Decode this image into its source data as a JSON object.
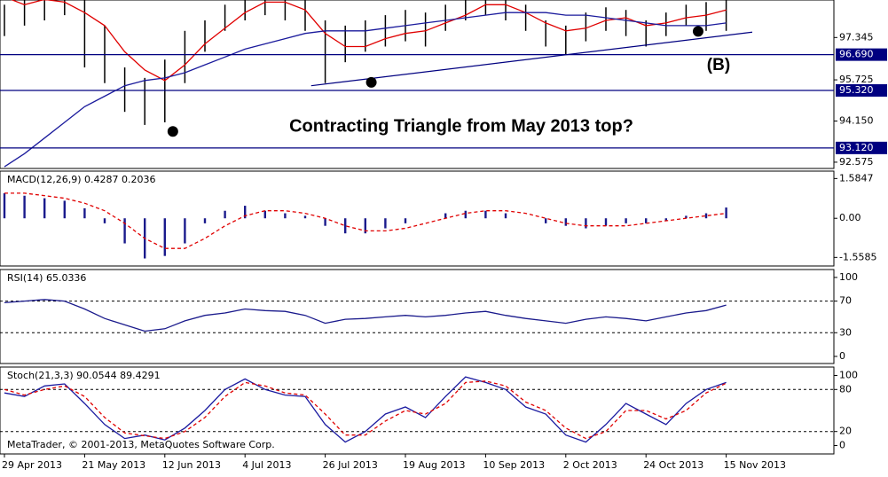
{
  "chart_data": [
    {
      "type": "hlc",
      "color": "#000000",
      "high": [
        98.6,
        99.0,
        99.0,
        99.0,
        98.8,
        97.8,
        96.2,
        95.8,
        96.5,
        97.6,
        98.0,
        98.6,
        99.0,
        99.0,
        99.0,
        98.8,
        98.0,
        97.8,
        98.0,
        98.2,
        98.4,
        98.3,
        98.6,
        99.0,
        99.0,
        98.9,
        98.6,
        98.0,
        97.8,
        98.3,
        98.5,
        98.4,
        98.0,
        98.3,
        98.6,
        98.7,
        98.8
      ],
      "low": [
        97.4,
        97.8,
        98.0,
        98.2,
        96.2,
        95.6,
        94.5,
        94.0,
        94.1,
        95.6,
        96.8,
        97.6,
        98.0,
        98.2,
        98.0,
        97.6,
        95.6,
        96.4,
        96.8,
        97.0,
        97.2,
        97.0,
        97.6,
        98.0,
        98.2,
        98.0,
        97.6,
        97.0,
        96.7,
        97.2,
        97.6,
        97.4,
        97.0,
        97.4,
        97.8,
        97.6,
        97.6
      ],
      "series": [
        {
          "color": "#e00000",
          "values": [
            98.9,
            98.6,
            98.8,
            98.7,
            98.3,
            97.8,
            96.8,
            96.1,
            95.7,
            96.3,
            97.1,
            97.7,
            98.3,
            98.7,
            98.7,
            98.4,
            97.5,
            97.0,
            97.0,
            97.3,
            97.5,
            97.6,
            97.9,
            98.2,
            98.6,
            98.6,
            98.3,
            97.9,
            97.6,
            97.7,
            98.0,
            98.1,
            97.8,
            97.9,
            98.1,
            98.2,
            98.4
          ]
        },
        {
          "color": "#1a1a9c",
          "values": [
            92.4,
            92.9,
            93.5,
            94.1,
            94.7,
            95.1,
            95.5,
            95.7,
            95.8,
            96.0,
            96.3,
            96.6,
            96.9,
            97.1,
            97.3,
            97.5,
            97.6,
            97.6,
            97.6,
            97.7,
            97.8,
            97.9,
            98.0,
            98.1,
            98.2,
            98.3,
            98.3,
            98.3,
            98.2,
            98.2,
            98.1,
            98.0,
            97.9,
            97.8,
            97.8,
            97.8,
            97.9
          ]
        }
      ],
      "ylim": [
        92.335,
        98.78
      ],
      "yticks": [
        92.575,
        {
          "value": 94.15,
          "label": "94.150"
        },
        95.725,
        97.345
      ],
      "levels": [
        {
          "value": 96.69,
          "label": "96.690"
        },
        {
          "value": 95.32,
          "label": "95.320"
        },
        {
          "value": 93.12,
          "label": "93.120"
        }
      ],
      "level_color": "#000080",
      "trendline": {
        "x": [
          15.3,
          37.3
        ],
        "y": [
          95.5,
          97.55
        ]
      },
      "markers": {
        "x": [
          8.4,
          18.3,
          34.6
        ],
        "y": [
          93.75,
          95.63,
          97.58
        ]
      },
      "annotation": "Contracting Triangle from May 2013 top?",
      "wave_label": "(B)"
    },
    {
      "type": "macd",
      "title": "MACD(12,26,9) 0.4287 0.2036",
      "color": "#1a1a8c",
      "values": [
        1.0,
        0.9,
        0.8,
        0.7,
        0.4,
        -0.2,
        -1.0,
        -1.6,
        -1.5,
        -1.0,
        -0.2,
        0.3,
        0.5,
        0.3,
        0.2,
        0.1,
        -0.3,
        -0.6,
        -0.6,
        -0.4,
        -0.2,
        0.0,
        0.2,
        0.3,
        0.3,
        0.2,
        0.0,
        -0.2,
        -0.3,
        -0.4,
        -0.3,
        -0.2,
        -0.2,
        -0.1,
        0.1,
        0.2,
        0.43
      ],
      "series": [
        {
          "color": "#e00000",
          "dashed": true,
          "values": [
            1.0,
            1.0,
            0.9,
            0.8,
            0.6,
            0.3,
            -0.2,
            -0.8,
            -1.2,
            -1.2,
            -0.8,
            -0.3,
            0.1,
            0.3,
            0.3,
            0.2,
            0.0,
            -0.3,
            -0.5,
            -0.5,
            -0.4,
            -0.2,
            0.0,
            0.2,
            0.3,
            0.3,
            0.2,
            0.0,
            -0.2,
            -0.3,
            -0.3,
            -0.3,
            -0.2,
            -0.1,
            0.0,
            0.1,
            0.2
          ]
        }
      ],
      "ylim": [
        -1.9,
        1.88
      ],
      "yticks": [
        -1.5585,
        {
          "value": 0,
          "label": "0.00"
        },
        1.5847
      ]
    },
    {
      "type": "line",
      "title": "RSI(14) 65.0336",
      "series": [
        {
          "color": "#1a1a8c",
          "values": [
            68,
            70,
            72,
            70,
            60,
            48,
            40,
            32,
            35,
            45,
            52,
            55,
            60,
            58,
            57,
            52,
            42,
            47,
            48,
            50,
            52,
            50,
            52,
            55,
            57,
            52,
            48,
            45,
            42,
            47,
            50,
            48,
            45,
            50,
            55,
            58,
            65
          ]
        }
      ],
      "ylim": [
        -9,
        110
      ],
      "yticks": [
        0,
        30,
        70,
        100
      ],
      "levels": [
        30,
        70
      ]
    },
    {
      "type": "line",
      "title": "Stoch(21,3,3) 90.0544 89.4291",
      "series": [
        {
          "color": "#1a1aa0",
          "values": [
            75,
            70,
            85,
            88,
            60,
            30,
            10,
            15,
            8,
            25,
            50,
            80,
            95,
            80,
            72,
            70,
            30,
            5,
            20,
            45,
            55,
            40,
            70,
            98,
            90,
            80,
            55,
            45,
            15,
            5,
            30,
            60,
            45,
            30,
            60,
            80,
            90
          ]
        },
        {
          "color": "#e00000",
          "dashed": true,
          "values": [
            80,
            72,
            80,
            85,
            70,
            40,
            18,
            14,
            10,
            20,
            40,
            70,
            90,
            85,
            75,
            72,
            45,
            15,
            15,
            35,
            50,
            45,
            60,
            90,
            92,
            85,
            62,
            50,
            25,
            10,
            20,
            50,
            50,
            38,
            50,
            75,
            89
          ]
        }
      ],
      "ylim": [
        -12,
        112
      ],
      "yticks": [
        0,
        20,
        80,
        100
      ],
      "levels": [
        20,
        80
      ],
      "footer": "MetaTrader, © 2001-2013, MetaQuotes Software Corp.",
      "categories": [
        "29 Apr 2013",
        null,
        null,
        null,
        "21 May 2013",
        null,
        null,
        null,
        "12 Jun 2013",
        null,
        null,
        null,
        "4 Jul 2013",
        null,
        null,
        null,
        "26 Jul 2013",
        null,
        null,
        null,
        "19 Aug 2013",
        null,
        null,
        null,
        "10 Sep 2013",
        null,
        null,
        null,
        "2 Oct 2013",
        null,
        null,
        null,
        "24 Oct 2013",
        null,
        null,
        null,
        "15 Nov 2013"
      ]
    }
  ]
}
